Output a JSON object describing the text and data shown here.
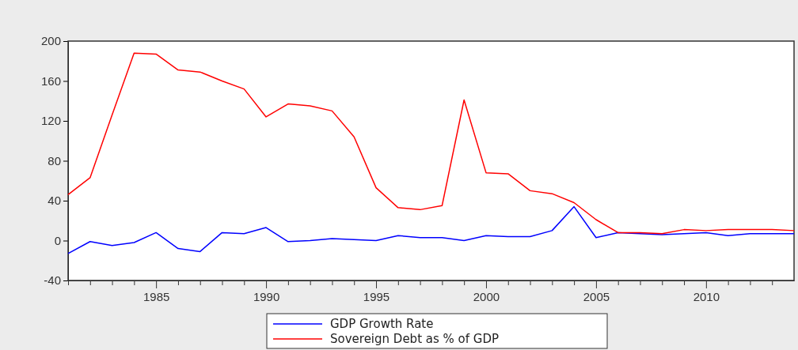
{
  "chart_data": {
    "type": "line",
    "x": [
      1981,
      1982,
      1983,
      1984,
      1985,
      1986,
      1987,
      1988,
      1989,
      1990,
      1991,
      1992,
      1993,
      1994,
      1995,
      1996,
      1997,
      1998,
      1999,
      2000,
      2001,
      2002,
      2003,
      2004,
      2005,
      2006,
      2007,
      2008,
      2009,
      2010,
      2011,
      2012,
      2013,
      2014
    ],
    "series": [
      {
        "name": "GDP Growth Rate",
        "color": "#0000ff",
        "values": [
          -13,
          -1,
          -5,
          -2,
          8,
          -8,
          -11,
          8,
          7,
          13,
          -1,
          0,
          2,
          1,
          0,
          5,
          3,
          3,
          0,
          5,
          4,
          4,
          10,
          34,
          3,
          8,
          7,
          6,
          7,
          8,
          5,
          7,
          7,
          7
        ]
      },
      {
        "name": "Sovereign Debt as % of GDP",
        "color": "#ff0000",
        "values": [
          46,
          63,
          126,
          188,
          187,
          171,
          169,
          160,
          152,
          124,
          137,
          135,
          130,
          104,
          53,
          33,
          31,
          35,
          141,
          68,
          67,
          50,
          47,
          38,
          21,
          8,
          8,
          7,
          11,
          10,
          11,
          11,
          11,
          10
        ]
      }
    ],
    "xlim": [
      1981,
      2014
    ],
    "xticks": [
      {
        "value": 1981,
        "label": null
      },
      {
        "value": 1982,
        "label": null
      },
      {
        "value": 1983,
        "label": null
      },
      {
        "value": 1984,
        "label": null
      },
      1985,
      {
        "value": 1986,
        "label": null
      },
      {
        "value": 1987,
        "label": null
      },
      {
        "value": 1988,
        "label": null
      },
      {
        "value": 1989,
        "label": null
      },
      1990,
      {
        "value": 1991,
        "label": null
      },
      {
        "value": 1992,
        "label": null
      },
      {
        "value": 1993,
        "label": null
      },
      {
        "value": 1994,
        "label": null
      },
      1995,
      {
        "value": 1996,
        "label": null
      },
      {
        "value": 1997,
        "label": null
      },
      {
        "value": 1998,
        "label": null
      },
      {
        "value": 1999,
        "label": null
      },
      2000,
      {
        "value": 2001,
        "label": null
      },
      {
        "value": 2002,
        "label": null
      },
      {
        "value": 2003,
        "label": null
      },
      {
        "value": 2004,
        "label": null
      },
      2005,
      {
        "value": 2006,
        "label": null
      },
      {
        "value": 2007,
        "label": null
      },
      {
        "value": 2008,
        "label": null
      },
      {
        "value": 2009,
        "label": null
      },
      2010,
      {
        "value": 2011,
        "label": null
      },
      {
        "value": 2012,
        "label": null
      },
      {
        "value": 2013,
        "label": null
      }
    ],
    "ylim": [
      -40,
      200
    ],
    "yticks": [
      -40,
      0,
      40,
      80,
      120,
      160,
      200
    ],
    "legend": "bottom",
    "marker": "none",
    "line_style": "solid"
  }
}
